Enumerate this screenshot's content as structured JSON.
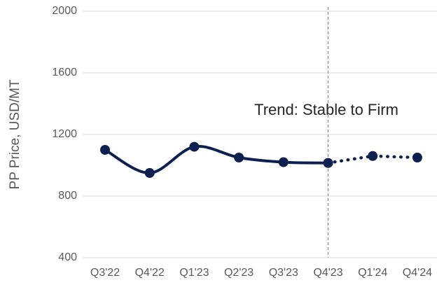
{
  "chart_data": {
    "type": "line",
    "y_label": "PP Price, USD/MT",
    "annotation": "Trend: Stable to Firm",
    "categories": [
      "Q3'22",
      "Q4'22",
      "Q1'23",
      "Q2'23",
      "Q3'23",
      "Q4'23",
      "Q1'24",
      "Q4'24"
    ],
    "series": [
      {
        "color": "#0e2050",
        "style": "solid",
        "values": [
          1100,
          950,
          1120,
          1050,
          1020,
          1015,
          null,
          null
        ]
      },
      {
        "color": "#0e2050",
        "style": "dotted",
        "values": [
          null,
          null,
          null,
          null,
          null,
          1015,
          1060,
          1050
        ]
      }
    ],
    "ylim": [
      400,
      2000
    ],
    "yticks": [
      400,
      800,
      1200,
      1600,
      2000
    ],
    "grid": true
  }
}
